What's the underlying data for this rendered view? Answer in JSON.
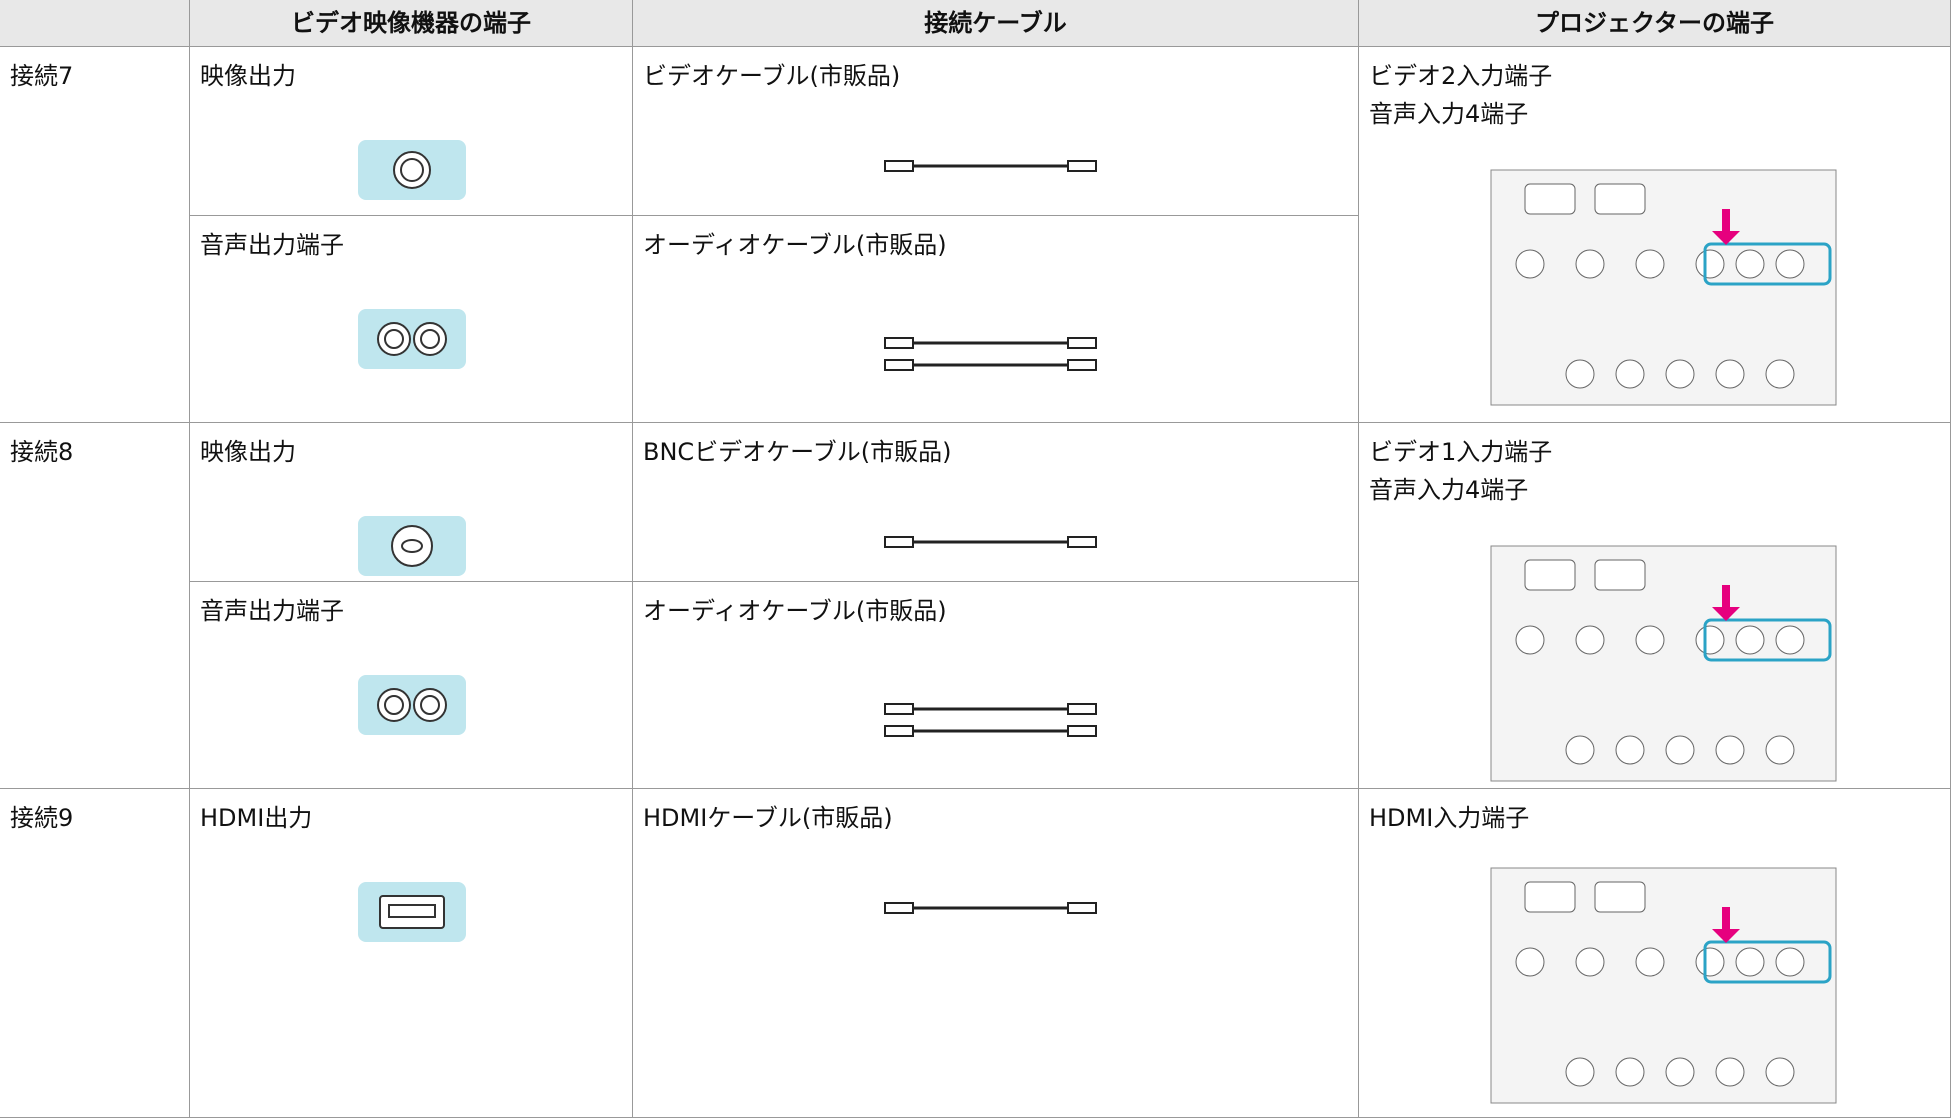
{
  "table": {
    "headers": [
      "ビデオ映像機器の端子",
      "接続ケーブル",
      "プロジェクターの端子"
    ],
    "rows": [
      {
        "connection": "接続7",
        "items": [
          {
            "output": "映像出力",
            "cable": "ビデオケーブル(市販品)"
          },
          {
            "output": "音声出力端子",
            "cable": "オーディオケーブル(市販品)"
          }
        ],
        "projector": [
          "ビデオ2入力端子",
          "音声入力4端子"
        ]
      },
      {
        "connection": "接続8",
        "items": [
          {
            "output": "映像出力",
            "cable": "BNCビデオケーブル(市販品)"
          },
          {
            "output": "音声出力端子",
            "cable": "オーディオケーブル(市販品)"
          }
        ],
        "projector": [
          "ビデオ1入力端子",
          "音声入力4端子"
        ]
      },
      {
        "connection": "接続9",
        "items": [
          {
            "output": "HDMI出力",
            "cable": "HDMIケーブル(市販品)"
          }
        ],
        "projector": [
          "HDMI入力端子"
        ]
      }
    ]
  }
}
